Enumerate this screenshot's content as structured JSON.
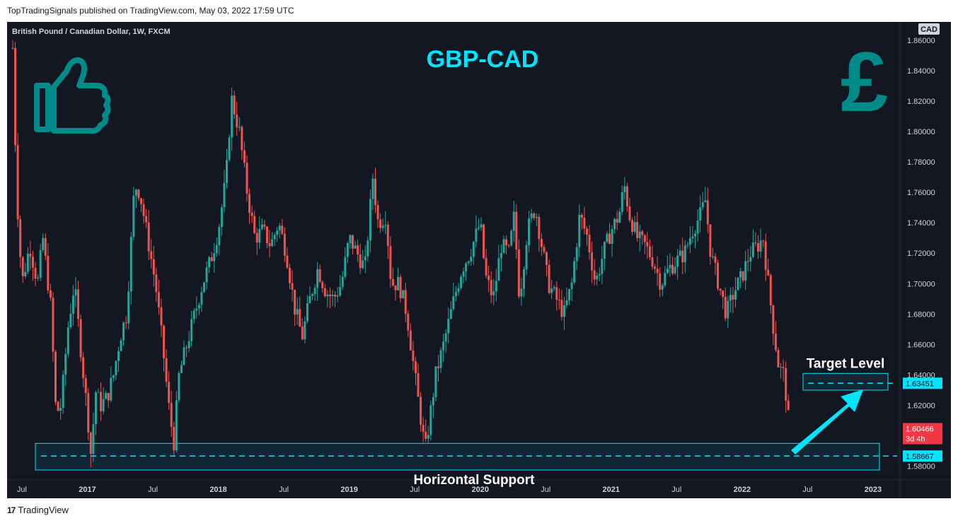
{
  "header": {
    "published": "TopTradingSignals published on TradingView.com, May 03, 2022 17:59 UTC"
  },
  "footer": {
    "brand": "TradingView",
    "logo_glyph": "17"
  },
  "chart_data": {
    "type": "candlestick",
    "symbol": "British Pound / Canadian Dollar, 1W, FXCM",
    "title": "GBP-CAD",
    "currency": "CAD",
    "y_ticks": [
      "1.86000",
      "1.84000",
      "1.82000",
      "1.80000",
      "1.78000",
      "1.76000",
      "1.74000",
      "1.72000",
      "1.70000",
      "1.68000",
      "1.66000",
      "1.64000",
      "1.62000",
      "1.58000"
    ],
    "ylim": [
      1.571,
      1.872
    ],
    "x_ticks": [
      {
        "label": "Jul",
        "t": 2016.5,
        "bold": false
      },
      {
        "label": "2017",
        "t": 2017.0,
        "bold": true
      },
      {
        "label": "Jul",
        "t": 2017.5,
        "bold": false
      },
      {
        "label": "2018",
        "t": 2018.0,
        "bold": true
      },
      {
        "label": "Jul",
        "t": 2018.5,
        "bold": false
      },
      {
        "label": "2019",
        "t": 2019.0,
        "bold": true
      },
      {
        "label": "Jul",
        "t": 2019.5,
        "bold": false
      },
      {
        "label": "2020",
        "t": 2020.0,
        "bold": true
      },
      {
        "label": "Jul",
        "t": 2020.5,
        "bold": false
      },
      {
        "label": "2021",
        "t": 2021.0,
        "bold": true
      },
      {
        "label": "Jul",
        "t": 2021.5,
        "bold": false
      },
      {
        "label": "2022",
        "t": 2022.0,
        "bold": true
      },
      {
        "label": "Jul",
        "t": 2022.5,
        "bold": false
      },
      {
        "label": "2023",
        "t": 2023.0,
        "bold": true
      }
    ],
    "xlim": [
      2016.43,
      2023.13
    ],
    "price_path": [
      [
        2016.43,
        1.855
      ],
      [
        2016.46,
        1.76
      ],
      [
        2016.5,
        1.7
      ],
      [
        2016.56,
        1.725
      ],
      [
        2016.62,
        1.7
      ],
      [
        2016.66,
        1.73
      ],
      [
        2016.72,
        1.685
      ],
      [
        2016.76,
        1.615
      ],
      [
        2016.8,
        1.62
      ],
      [
        2016.85,
        1.67
      ],
      [
        2016.9,
        1.7
      ],
      [
        2016.94,
        1.665
      ],
      [
        2017.0,
        1.615
      ],
      [
        2017.03,
        1.585
      ],
      [
        2017.06,
        1.63
      ],
      [
        2017.1,
        1.62
      ],
      [
        2017.15,
        1.625
      ],
      [
        2017.2,
        1.64
      ],
      [
        2017.25,
        1.665
      ],
      [
        2017.3,
        1.68
      ],
      [
        2017.36,
        1.765
      ],
      [
        2017.4,
        1.76
      ],
      [
        2017.46,
        1.73
      ],
      [
        2017.52,
        1.7
      ],
      [
        2017.58,
        1.655
      ],
      [
        2017.62,
        1.62
      ],
      [
        2017.66,
        1.595
      ],
      [
        2017.7,
        1.64
      ],
      [
        2017.76,
        1.66
      ],
      [
        2017.82,
        1.68
      ],
      [
        2017.88,
        1.7
      ],
      [
        2017.94,
        1.715
      ],
      [
        2018.0,
        1.735
      ],
      [
        2018.06,
        1.77
      ],
      [
        2018.1,
        1.822
      ],
      [
        2018.16,
        1.8
      ],
      [
        2018.22,
        1.76
      ],
      [
        2018.28,
        1.73
      ],
      [
        2018.34,
        1.735
      ],
      [
        2018.4,
        1.725
      ],
      [
        2018.46,
        1.74
      ],
      [
        2018.52,
        1.72
      ],
      [
        2018.58,
        1.685
      ],
      [
        2018.64,
        1.665
      ],
      [
        2018.7,
        1.69
      ],
      [
        2018.76,
        1.71
      ],
      [
        2018.82,
        1.695
      ],
      [
        2018.88,
        1.69
      ],
      [
        2018.94,
        1.7
      ],
      [
        2019.0,
        1.73
      ],
      [
        2019.06,
        1.72
      ],
      [
        2019.12,
        1.71
      ],
      [
        2019.18,
        1.77
      ],
      [
        2019.22,
        1.74
      ],
      [
        2019.28,
        1.745
      ],
      [
        2019.32,
        1.7
      ],
      [
        2019.38,
        1.7
      ],
      [
        2019.44,
        1.68
      ],
      [
        2019.5,
        1.64
      ],
      [
        2019.54,
        1.615
      ],
      [
        2019.58,
        1.59
      ],
      [
        2019.62,
        1.615
      ],
      [
        2019.66,
        1.64
      ],
      [
        2019.72,
        1.66
      ],
      [
        2019.8,
        1.69
      ],
      [
        2019.86,
        1.71
      ],
      [
        2019.92,
        1.72
      ],
      [
        2020.0,
        1.74
      ],
      [
        2020.04,
        1.705
      ],
      [
        2020.1,
        1.69
      ],
      [
        2020.16,
        1.725
      ],
      [
        2020.22,
        1.72
      ],
      [
        2020.26,
        1.745
      ],
      [
        2020.3,
        1.69
      ],
      [
        2020.36,
        1.735
      ],
      [
        2020.42,
        1.75
      ],
      [
        2020.48,
        1.72
      ],
      [
        2020.52,
        1.7
      ],
      [
        2020.58,
        1.69
      ],
      [
        2020.64,
        1.68
      ],
      [
        2020.7,
        1.7
      ],
      [
        2020.76,
        1.745
      ],
      [
        2020.82,
        1.73
      ],
      [
        2020.88,
        1.7
      ],
      [
        2020.94,
        1.72
      ],
      [
        2021.0,
        1.735
      ],
      [
        2021.06,
        1.745
      ],
      [
        2021.1,
        1.765
      ],
      [
        2021.14,
        1.745
      ],
      [
        2021.2,
        1.73
      ],
      [
        2021.26,
        1.725
      ],
      [
        2021.32,
        1.715
      ],
      [
        2021.38,
        1.7
      ],
      [
        2021.44,
        1.71
      ],
      [
        2021.5,
        1.715
      ],
      [
        2021.56,
        1.72
      ],
      [
        2021.62,
        1.735
      ],
      [
        2021.68,
        1.745
      ],
      [
        2021.72,
        1.755
      ],
      [
        2021.76,
        1.72
      ],
      [
        2021.82,
        1.7
      ],
      [
        2021.88,
        1.68
      ],
      [
        2021.94,
        1.695
      ],
      [
        2022.0,
        1.705
      ],
      [
        2022.06,
        1.72
      ],
      [
        2022.12,
        1.725
      ],
      [
        2022.16,
        1.73
      ],
      [
        2022.2,
        1.7
      ],
      [
        2022.24,
        1.67
      ],
      [
        2022.28,
        1.645
      ],
      [
        2022.32,
        1.64
      ],
      [
        2022.36,
        1.605
      ]
    ],
    "last_price": {
      "label": "1.60466",
      "countdown": "3d 4h",
      "value": 1.60466,
      "color": "#f23645"
    },
    "support": {
      "label": "Horizontal Support",
      "value": 1.58667,
      "badge": "1.58667",
      "zone": [
        1.5775,
        1.595
      ]
    },
    "target": {
      "label": "Target Level",
      "value": 1.63451,
      "badge": "1.63451",
      "zone": [
        1.63,
        1.641
      ]
    },
    "colors": {
      "background": "#131722",
      "up": "#26a69a",
      "down": "#ef5350",
      "accent": "#00e5ff",
      "icon": "#008b8b"
    },
    "icons": [
      "thumbs-up-icon",
      "pound-sign-icon",
      "arrow-up-right-icon"
    ]
  }
}
